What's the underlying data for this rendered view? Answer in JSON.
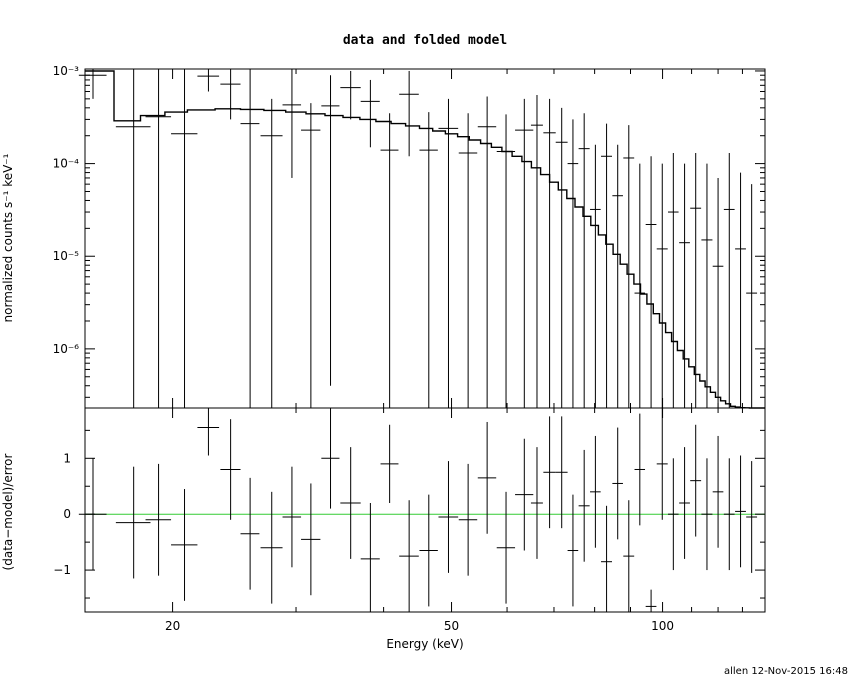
{
  "chart_data": [
    {
      "panel": "top",
      "type": "scatter",
      "title": "data and folded model",
      "ylabel": "normalized counts s⁻¹ keV⁻¹",
      "xlabel": "",
      "xscale": "log",
      "yscale": "log",
      "xlim": [
        15,
        140
      ],
      "ylim": [
        2.3e-07,
        0.00105
      ],
      "ytick_labels": [
        "10⁻³",
        "10⁻⁴",
        "10⁻⁵",
        "10⁻⁶"
      ],
      "ytick_values": [
        0.001,
        0.0001,
        1e-05,
        1e-06
      ],
      "series": [
        {
          "kind": "data-with-errors",
          "x": [
            15.4,
            17.6,
            19.1,
            20.8,
            22.5,
            24.2,
            25.8,
            27.7,
            29.6,
            31.5,
            33.6,
            35.9,
            38.3,
            40.8,
            43.5,
            46.4,
            49.5,
            52.8,
            56.2,
            59.8,
            63.5,
            66.2,
            69.0,
            71.8,
            74.5,
            77.3,
            80.2,
            83.2,
            86.3,
            89.5,
            92.8,
            96.3,
            99.9,
            103.6,
            107.5,
            111.5,
            115.7,
            120.0,
            124.5,
            129.2,
            134.0
          ],
          "y": [
            0.0009,
            0.00025,
            0.00032,
            0.00021,
            0.00088,
            0.00072,
            0.00027,
            0.0002,
            0.00043,
            0.00023,
            0.00042,
            0.00066,
            0.00047,
            0.00014,
            0.00056,
            0.00014,
            0.00024,
            0.00013,
            0.00025,
            0.000135,
            0.00023,
            0.00026,
            0.000215,
            0.00017,
            0.0001,
            0.000145,
            3.2e-05,
            0.00012,
            4.5e-05,
            0.000115,
            4e-06,
            2.2e-05,
            1.2e-05,
            3e-05,
            1.4e-05,
            3.3e-05,
            1.5e-05,
            7.8e-06,
            3.2e-05,
            1.2e-05,
            4e-06
          ],
          "xerr": [
            0.7,
            1.0,
            0.8,
            0.9,
            0.8,
            0.8,
            0.8,
            1.0,
            0.9,
            1.0,
            1.0,
            1.2,
            1.2,
            1.2,
            1.4,
            1.4,
            1.6,
            1.6,
            1.7,
            1.8,
            1.9,
            1.3,
            1.4,
            1.4,
            1.3,
            1.4,
            1.4,
            1.5,
            1.5,
            1.6,
            1.6,
            1.7,
            1.8,
            1.8,
            1.9,
            2.0,
            2.1,
            2.1,
            2.2,
            2.3,
            2.4
          ],
          "ylo": [
            0.0005,
            2.3e-07,
            2.3e-07,
            2.3e-07,
            0.0006,
            0.0003,
            2.3e-07,
            2.3e-07,
            7e-05,
            2.3e-07,
            4e-07,
            0.0003,
            0.00015,
            2.3e-07,
            0.00012,
            2.3e-07,
            2.3e-07,
            2.3e-07,
            2.3e-07,
            2.3e-07,
            2.3e-07,
            2.3e-07,
            2.3e-07,
            2.3e-07,
            2.3e-07,
            2.3e-07,
            2.3e-07,
            2.3e-07,
            2.3e-07,
            2.3e-07,
            2.3e-07,
            2.3e-07,
            2.3e-07,
            2.3e-07,
            2.3e-07,
            2.3e-07,
            2.3e-07,
            2.3e-07,
            2.3e-07,
            2.3e-07,
            2.3e-07
          ],
          "yhi": [
            0.00105,
            0.00105,
            0.00105,
            0.00105,
            0.00105,
            0.00105,
            0.00105,
            0.0005,
            0.00105,
            0.00045,
            0.0009,
            0.001,
            0.0008,
            0.00035,
            0.001,
            0.00036,
            0.0005,
            0.00035,
            0.00053,
            0.00034,
            0.0005,
            0.00055,
            0.0005,
            0.0004,
            0.0003,
            0.00035,
            0.00016,
            0.00027,
            0.00016,
            0.00026,
            0.0001,
            0.00012,
            0.0001,
            0.00013,
            0.0001,
            0.00013,
            0.0001,
            7e-05,
            0.00013,
            8e-05,
            6e-05
          ]
        },
        {
          "kind": "folded-model-step",
          "edges": [
            15,
            16.5,
            18,
            19.5,
            21,
            23,
            25,
            27,
            29,
            31,
            33,
            35,
            37,
            39,
            41,
            43,
            45,
            47,
            49,
            51,
            53,
            55,
            57,
            59,
            61,
            63,
            65,
            67,
            69,
            71,
            73,
            75,
            77,
            79,
            81,
            83,
            85,
            87,
            89,
            91,
            93,
            95,
            97,
            99,
            101,
            103,
            105,
            107,
            109,
            111,
            113,
            115,
            117,
            119,
            121,
            123,
            125,
            127,
            129,
            131,
            133,
            135,
            137,
            140
          ],
          "values": [
            0.001,
            0.00029,
            0.00033,
            0.00036,
            0.00038,
            0.00039,
            0.000385,
            0.000375,
            0.00036,
            0.000345,
            0.00033,
            0.000315,
            0.0003,
            0.000285,
            0.00027,
            0.000255,
            0.00024,
            0.000225,
            0.00021,
            0.000195,
            0.00018,
            0.000165,
            0.00015,
            0.000135,
            0.00012,
            0.000105,
            9e-05,
            7.6e-05,
            6.3e-05,
            5.2e-05,
            4.2e-05,
            3.4e-05,
            2.7e-05,
            2.15e-05,
            1.7e-05,
            1.35e-05,
            1.05e-05,
            8.2e-06,
            6.4e-06,
            5e-06,
            3.9e-06,
            3.05e-06,
            2.4e-06,
            1.9e-06,
            1.5e-06,
            1.2e-06,
            9.6e-07,
            7.8e-07,
            6.4e-07,
            5.3e-07,
            4.5e-07,
            3.9e-07,
            3.4e-07,
            3e-07,
            2.75e-07,
            2.55e-07,
            2.4e-07,
            2.35e-07,
            2.32e-07,
            2.31e-07,
            2.3e-07,
            2.3e-07,
            2.3e-07
          ]
        }
      ]
    },
    {
      "panel": "bottom",
      "type": "scatter",
      "title": "",
      "xlabel": "Energy (keV)",
      "ylabel": "(data−model)/error",
      "xscale": "log",
      "xlim": [
        15,
        140
      ],
      "ylim": [
        -1.75,
        1.9
      ],
      "xtick_labels": [
        "20",
        "50",
        "100"
      ],
      "xtick_values": [
        20,
        50,
        100
      ],
      "ytick_labels": [
        "−1",
        "0",
        "1"
      ],
      "ytick_values": [
        -1,
        0,
        1
      ],
      "reference_line": {
        "y": 0,
        "color": "#33cc33"
      },
      "series": [
        {
          "kind": "residuals-with-errors",
          "x": [
            15.4,
            17.6,
            19.1,
            20.8,
            22.5,
            24.2,
            25.8,
            27.7,
            29.6,
            31.5,
            33.6,
            35.9,
            38.3,
            40.8,
            43.5,
            46.4,
            49.5,
            52.8,
            56.2,
            59.8,
            63.5,
            66.2,
            69.0,
            71.8,
            74.5,
            77.3,
            80.2,
            83.2,
            86.3,
            89.5,
            92.8,
            96.3,
            99.9,
            103.6,
            107.5,
            111.5,
            115.7,
            120.0,
            124.5,
            129.2,
            134.0
          ],
          "y": [
            0.0,
            -0.15,
            -0.1,
            -0.55,
            1.55,
            0.8,
            -0.35,
            -0.6,
            -0.05,
            -0.45,
            1.0,
            0.2,
            -0.8,
            0.9,
            -0.75,
            -0.65,
            -0.05,
            -0.1,
            0.65,
            -0.6,
            0.35,
            0.2,
            0.75,
            0.75,
            -0.65,
            0.15,
            0.4,
            -0.85,
            0.55,
            -0.75,
            0.8,
            -1.65,
            0.9,
            0.0,
            0.2,
            0.6,
            0.0,
            0.4,
            0.0,
            0.05,
            -0.05
          ],
          "xerr": [
            0.7,
            1.0,
            0.8,
            0.9,
            0.8,
            0.8,
            0.8,
            1.0,
            0.9,
            1.0,
            1.0,
            1.2,
            1.2,
            1.2,
            1.4,
            1.4,
            1.6,
            1.6,
            1.7,
            1.8,
            1.9,
            1.3,
            1.4,
            1.4,
            1.3,
            1.4,
            1.4,
            1.5,
            1.5,
            1.6,
            1.6,
            1.7,
            1.8,
            1.8,
            1.9,
            2.0,
            2.1,
            2.1,
            2.2,
            2.3,
            2.4
          ],
          "yerr": [
            1.0,
            1.0,
            1.0,
            1.0,
            0.5,
            0.9,
            1.0,
            1.0,
            0.9,
            1.0,
            0.9,
            1.0,
            1.0,
            0.7,
            1.0,
            1.0,
            1.0,
            1.0,
            1.0,
            1.0,
            1.0,
            1.0,
            1.0,
            1.0,
            1.0,
            1.0,
            1.0,
            1.0,
            1.0,
            1.0,
            1.0,
            0.3,
            1.0,
            1.0,
            1.0,
            1.0,
            1.0,
            1.0,
            1.0,
            1.0,
            1.0
          ]
        }
      ]
    }
  ],
  "footer": "allen 12-Nov-2015 16:48"
}
